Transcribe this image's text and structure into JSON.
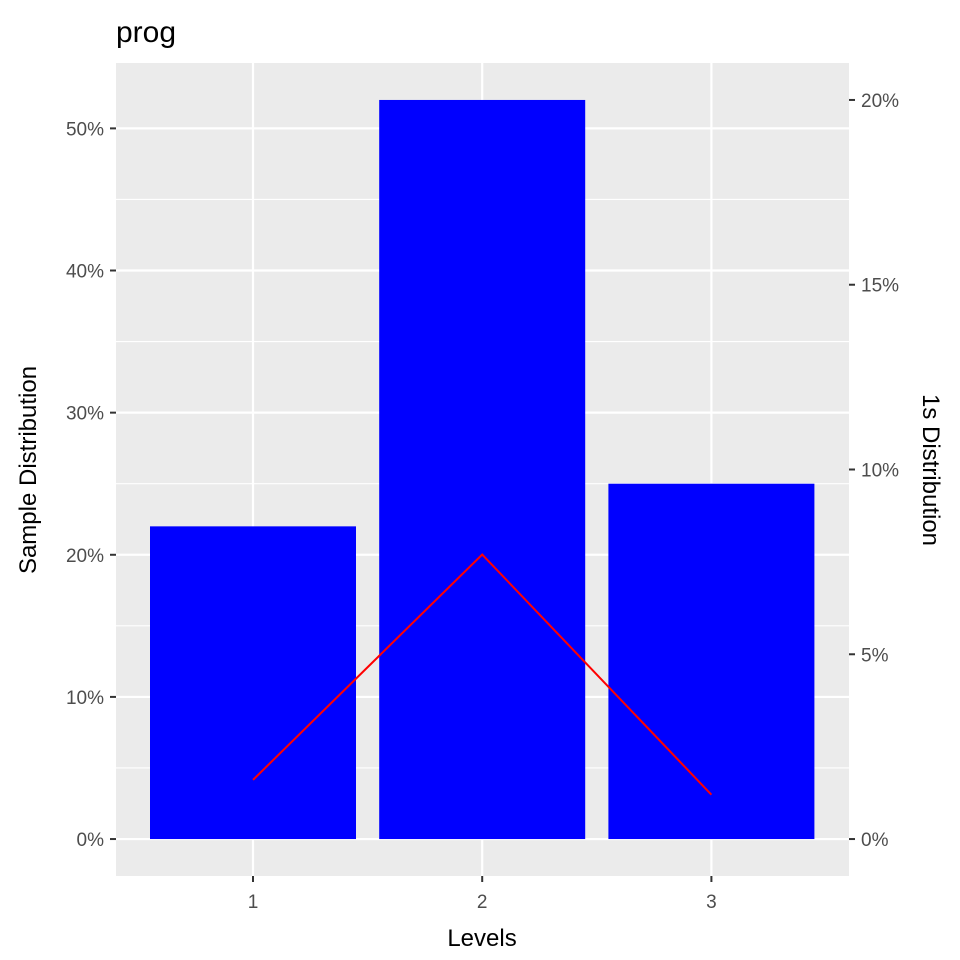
{
  "chart_data": {
    "type": "bar",
    "title": "prog",
    "xlabel": "Levels",
    "ylabel": "Sample Distribution",
    "y2label": "1s Distribution",
    "categories": [
      "1",
      "2",
      "3"
    ],
    "series": [
      {
        "axis": "left",
        "kind": "bar",
        "color": "#0000ff",
        "values": [
          22,
          52,
          25
        ]
      },
      {
        "axis": "right",
        "kind": "line",
        "color": "#ff0000",
        "values": [
          1.6,
          7.7,
          1.2
        ]
      }
    ],
    "y_ticks": [
      0,
      10,
      20,
      30,
      40,
      50
    ],
    "y_tick_labels": [
      "0%",
      "10%",
      "20%",
      "30%",
      "40%",
      "50%"
    ],
    "y2_ticks": [
      0,
      5,
      10,
      15,
      20
    ],
    "y2_tick_labels": [
      "0%",
      "5%",
      "10%",
      "15%",
      "20%"
    ],
    "ylim": [
      -2.6,
      54.6
    ],
    "y2lim": [
      -1.0,
      21.0
    ],
    "grid": true,
    "panel_color": "#ebebeb"
  }
}
